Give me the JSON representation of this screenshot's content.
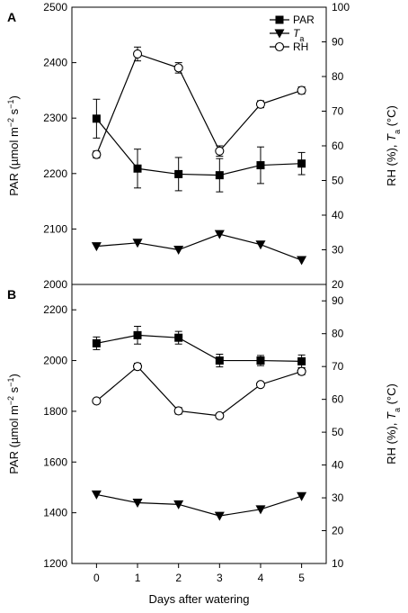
{
  "chart_data": {
    "type": "line",
    "xlabel": "Days after watering",
    "x": [
      0,
      1,
      2,
      3,
      4,
      5
    ],
    "legend": {
      "placement": "top-right",
      "entries": [
        {
          "label": "PAR",
          "marker": "square-filled"
        },
        {
          "label": "Ta",
          "marker": "triangle-down-filled"
        },
        {
          "label": "RH",
          "marker": "circle-open"
        }
      ]
    },
    "panels": [
      {
        "label": "A",
        "ylabel_left": "PAR (µmol m−2 s−1)",
        "ylabel_right": "RH (%), Ta (°C)",
        "ylim_left": [
          2000,
          2500
        ],
        "yticks_left": [
          2000,
          2100,
          2200,
          2300,
          2400,
          2500
        ],
        "ylim_right": [
          20,
          100
        ],
        "yticks_right": [
          20,
          30,
          40,
          50,
          60,
          70,
          80,
          90,
          100
        ],
        "series": [
          {
            "name": "PAR",
            "axis": "left",
            "marker": "square-filled",
            "values": [
              2299,
              2209,
              2199,
              2197,
              2215,
              2218
            ],
            "errors": [
              35,
              35,
              30,
              30,
              33,
              20
            ]
          },
          {
            "name": "Ta",
            "axis": "right",
            "marker": "triangle-down-filled",
            "values": [
              31,
              32,
              30,
              34.5,
              31.5,
              27
            ],
            "errors": [
              0,
              0,
              0,
              0,
              0,
              0
            ]
          },
          {
            "name": "RH",
            "axis": "right",
            "marker": "circle-open",
            "values": [
              57.5,
              86.5,
              82.5,
              58.5,
              72,
              76
            ],
            "errors": [
              1,
              2,
              1.5,
              1.5,
              1,
              1
            ]
          }
        ]
      },
      {
        "label": "B",
        "ylabel_left": "PAR (µmol m−2 s−1)",
        "ylabel_right": "RH (%), Ta (°C)",
        "ylim_left": [
          1200,
          2300
        ],
        "yticks_left": [
          1200,
          1400,
          1600,
          1800,
          2000,
          2200
        ],
        "ylim_right": [
          10,
          95
        ],
        "yticks_right": [
          10,
          20,
          30,
          40,
          50,
          60,
          70,
          80,
          90
        ],
        "series": [
          {
            "name": "PAR",
            "axis": "left",
            "marker": "square-filled",
            "values": [
              2068,
              2100,
              2090,
              2000,
              2000,
              1997
            ],
            "errors": [
              25,
              35,
              25,
              25,
              20,
              25
            ]
          },
          {
            "name": "Ta",
            "axis": "right",
            "marker": "triangle-down-filled",
            "values": [
              31,
              28.5,
              28,
              24.5,
              26.5,
              30.5
            ],
            "errors": [
              0,
              0,
              0,
              0,
              0,
              0
            ]
          },
          {
            "name": "RH",
            "axis": "right",
            "marker": "circle-open",
            "values": [
              59.5,
              70,
              56.5,
              55,
              64.5,
              68.5
            ],
            "errors": [
              0.5,
              1,
              1,
              0.5,
              0.5,
              1
            ]
          }
        ]
      }
    ]
  }
}
